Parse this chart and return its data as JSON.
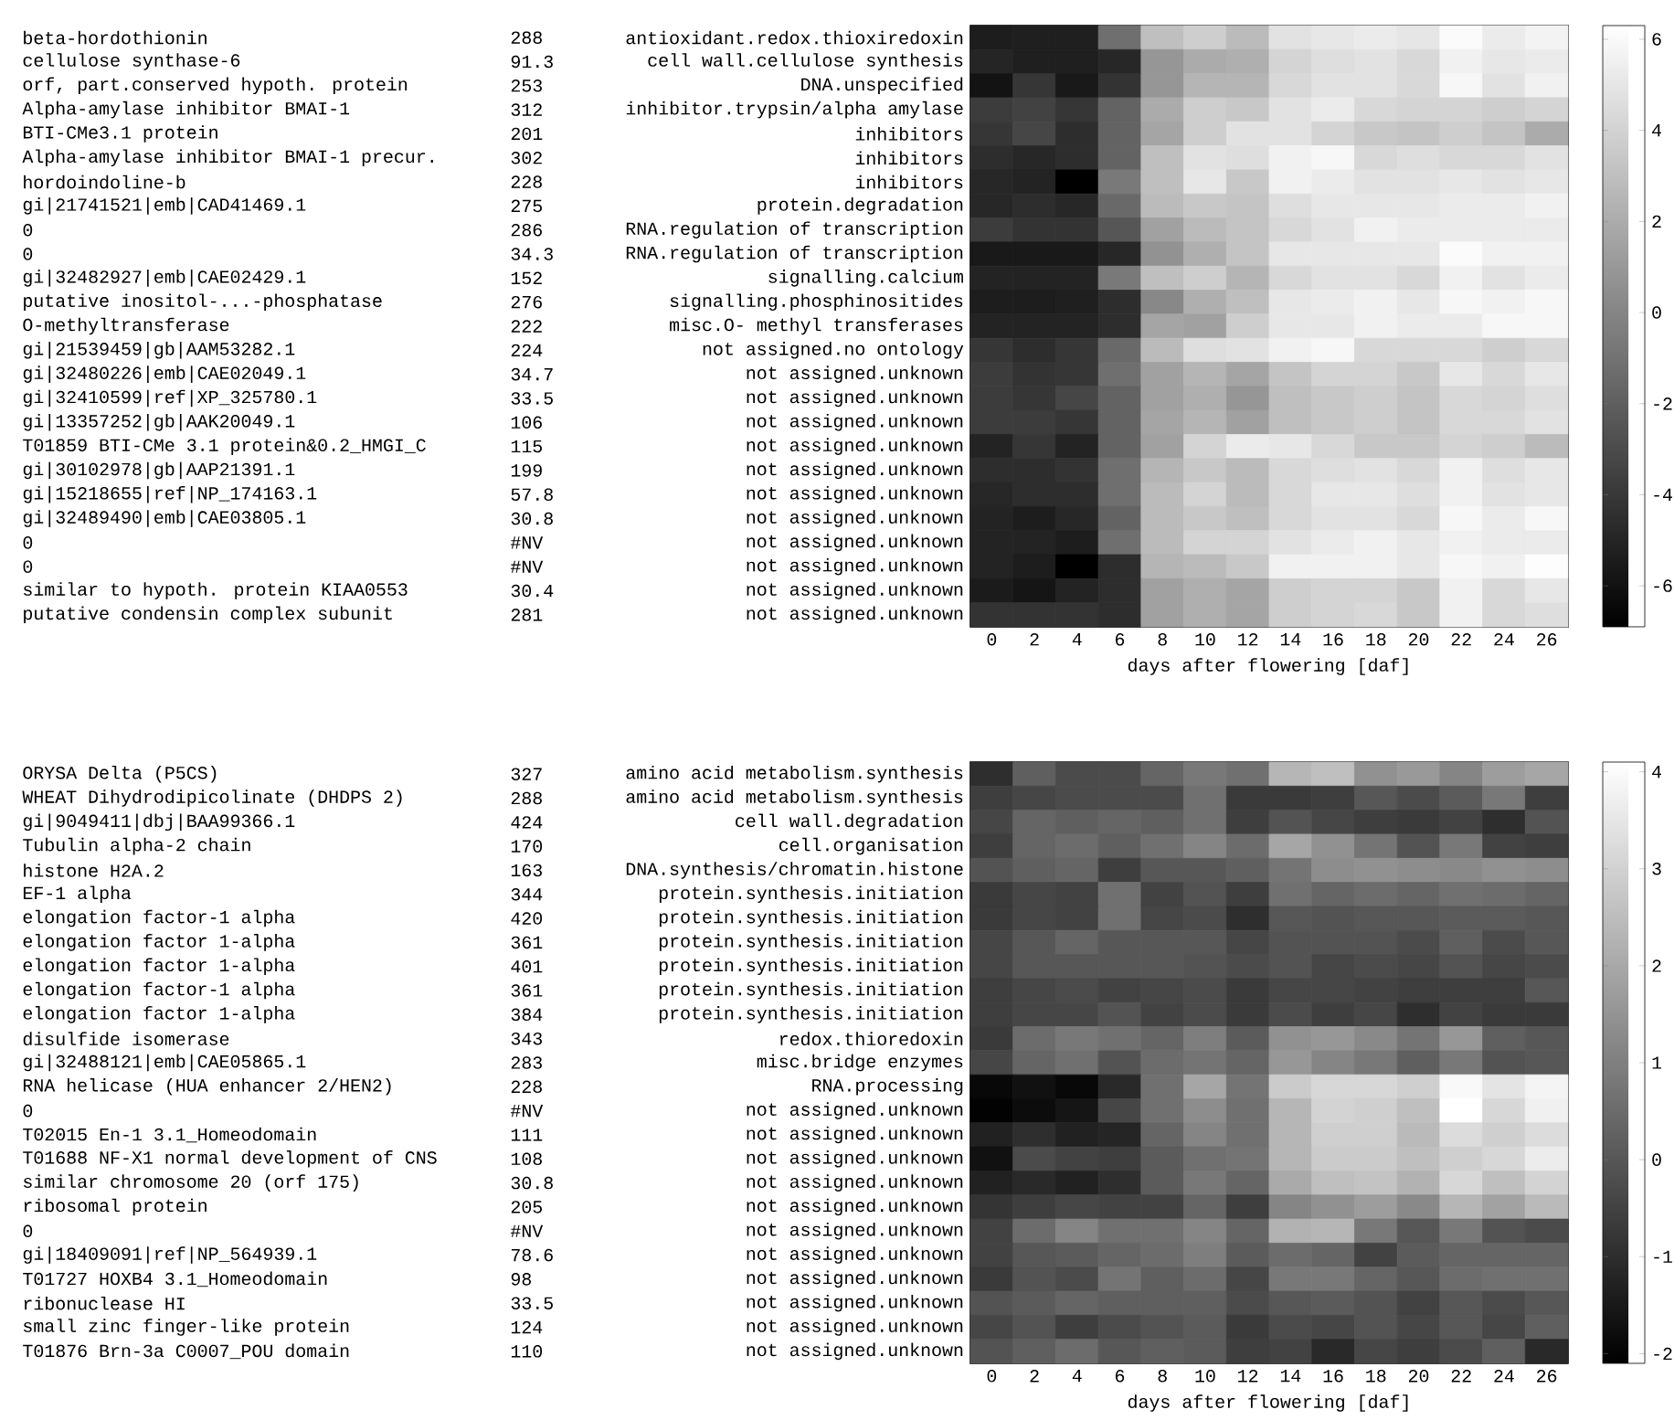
{
  "chart_data": [
    {
      "type": "heatmap",
      "xlabel": "days after flowering [daf]",
      "categories": [
        "0",
        "2",
        "4",
        "6",
        "8",
        "10",
        "12",
        "14",
        "16",
        "18",
        "20",
        "22",
        "24",
        "26"
      ],
      "y_categories": [
        "antioxidant.redox.thioxiredoxin",
        "cell wall.cellulose synthesis",
        "DNA.unspecified",
        "inhibitor.trypsin/alpha amylase",
        "inhibitors",
        "inhibitors",
        "inhibitors",
        "protein.degradation",
        "RNA.regulation of transcription",
        "RNA.regulation of transcription",
        "signalling.calcium",
        "signalling.phosphinositides",
        "misc.O- methyl transferases",
        "not assigned.no ontology",
        "not assigned.unknown",
        "not assigned.unknown",
        "not assigned.unknown",
        "not assigned.unknown",
        "not assigned.unknown",
        "not assigned.unknown",
        "not assigned.unknown",
        "not assigned.unknown",
        "not assigned.unknown",
        "not assigned.unknown",
        "not assigned.unknown"
      ],
      "annotations": [
        "beta-hordothionin",
        "cellulose synthase-6",
        "orf, part.conserved hypoth. protein",
        "Alpha-amylase inhibitor BMAI-1",
        "BTI-CMe3.1 protein",
        "Alpha-amylase inhibitor BMAI-1 precur.",
        "hordoindoline-b",
        "gi|21741521|emb|CAD41469.1",
        "0",
        "0",
        "gi|32482927|emb|CAE02429.1",
        "putative inositol-...-phosphatase",
        "O-methyltransferase",
        "gi|21539459|gb|AAM53282.1",
        "gi|32480226|emb|CAE02049.1",
        "gi|32410599|ref|XP_325780.1",
        "gi|13357252|gb|AAK20049.1",
        "T01859 BTI-CMe 3.1 protein&0.2_HMGI_C",
        "gi|30102978|gb|AAP21391.1",
        "gi|15218655|ref|NP_174163.1",
        "gi|32489490|emb|CAE03805.1",
        "0",
        "0",
        "similar to hypoth. protein KIAA0553",
        "putative condensin complex subunit",
        "288",
        "91.3",
        "253",
        "312",
        "201",
        "302",
        "228",
        "275",
        "286",
        "34.3",
        "152",
        "276",
        "222",
        "224",
        "34.7",
        "33.5",
        "106",
        "115",
        "199",
        "57.8",
        "30.8",
        "#NV",
        "#NV",
        "30.4",
        "281"
      ],
      "clim": [
        -6.9,
        6.3
      ],
      "cticks": [
        -6,
        -4,
        -2,
        0,
        2,
        4,
        6
      ],
      "cells": [
        [
          -5.4,
          -5.3,
          -5.3,
          -1.2,
          2.9,
          3.7,
          2.7,
          4.7,
          5.0,
          5.2,
          4.9,
          6.0,
          5.2,
          5.6
        ],
        [
          -5.0,
          -5.3,
          -5.3,
          -4.9,
          0.8,
          1.9,
          2.1,
          4.0,
          4.5,
          4.7,
          4.2,
          5.5,
          5.0,
          5.2
        ],
        [
          -5.9,
          -4.1,
          -5.6,
          -4.3,
          0.8,
          2.4,
          2.4,
          4.2,
          4.7,
          4.7,
          4.2,
          5.8,
          4.7,
          5.5
        ],
        [
          -3.8,
          -3.5,
          -4.1,
          -1.8,
          1.9,
          3.7,
          3.4,
          4.7,
          5.2,
          4.2,
          4.0,
          4.0,
          3.7,
          4.0
        ],
        [
          -4.1,
          -3.3,
          -4.6,
          -1.8,
          1.6,
          3.7,
          4.7,
          4.7,
          4.0,
          3.4,
          3.2,
          3.7,
          3.2,
          1.9
        ],
        [
          -4.6,
          -4.9,
          -4.6,
          -1.8,
          2.9,
          4.7,
          4.5,
          5.5,
          5.8,
          4.2,
          4.5,
          4.2,
          4.2,
          4.7
        ],
        [
          -4.9,
          -5.1,
          -6.9,
          -0.7,
          2.9,
          5.0,
          3.4,
          5.5,
          5.2,
          4.7,
          4.7,
          5.0,
          4.7,
          5.0
        ],
        [
          -4.9,
          -4.6,
          -4.9,
          -1.5,
          2.7,
          3.4,
          3.2,
          4.5,
          5.0,
          5.0,
          5.0,
          5.2,
          5.2,
          5.5
        ],
        [
          -3.8,
          -4.3,
          -4.3,
          -2.5,
          1.4,
          2.7,
          3.2,
          4.2,
          4.7,
          5.5,
          5.2,
          5.2,
          5.2,
          5.2
        ],
        [
          -5.6,
          -5.6,
          -5.6,
          -4.9,
          0.6,
          2.1,
          3.2,
          5.0,
          5.0,
          5.0,
          5.0,
          6.0,
          5.5,
          5.5
        ],
        [
          -5.1,
          -5.1,
          -5.1,
          -0.7,
          2.9,
          3.7,
          2.4,
          4.2,
          4.7,
          4.7,
          4.2,
          5.5,
          4.7,
          5.2
        ],
        [
          -5.4,
          -5.4,
          -5.3,
          -4.6,
          0.1,
          2.1,
          2.9,
          5.0,
          5.2,
          5.5,
          5.0,
          5.8,
          5.5,
          5.8
        ],
        [
          -5.1,
          -5.1,
          -5.1,
          -4.6,
          1.6,
          1.4,
          3.7,
          5.0,
          5.0,
          5.5,
          5.2,
          5.2,
          5.8,
          5.8
        ],
        [
          -4.1,
          -4.6,
          -4.1,
          -1.5,
          2.7,
          4.5,
          4.7,
          5.5,
          5.8,
          4.2,
          4.2,
          4.2,
          3.7,
          4.2
        ],
        [
          -3.8,
          -4.3,
          -4.1,
          -1.2,
          1.4,
          2.4,
          1.6,
          3.2,
          4.0,
          4.0,
          3.4,
          5.0,
          4.2,
          5.0
        ],
        [
          -3.8,
          -4.1,
          -3.3,
          -1.8,
          1.4,
          2.1,
          0.8,
          2.9,
          3.4,
          3.7,
          3.2,
          4.2,
          4.0,
          4.5
        ],
        [
          -3.8,
          -3.8,
          -4.1,
          -1.8,
          1.6,
          2.4,
          1.4,
          2.9,
          3.4,
          3.7,
          3.2,
          4.2,
          4.2,
          4.7
        ],
        [
          -5.1,
          -4.1,
          -5.1,
          -1.8,
          1.4,
          4.0,
          5.2,
          5.0,
          4.2,
          3.4,
          3.4,
          4.0,
          3.7,
          2.7
        ],
        [
          -4.6,
          -4.6,
          -4.3,
          -1.2,
          2.4,
          3.4,
          2.7,
          4.2,
          4.5,
          4.7,
          4.2,
          5.5,
          4.5,
          5.0
        ],
        [
          -4.9,
          -4.6,
          -4.6,
          -1.2,
          2.7,
          4.0,
          2.7,
          4.2,
          5.0,
          5.0,
          4.5,
          5.5,
          4.7,
          5.0
        ],
        [
          -5.1,
          -5.4,
          -4.9,
          -1.8,
          2.7,
          3.4,
          2.9,
          4.2,
          4.7,
          4.7,
          4.2,
          5.8,
          5.2,
          5.8
        ],
        [
          -5.1,
          -5.1,
          -5.4,
          -1.2,
          2.7,
          4.0,
          4.0,
          4.7,
          5.2,
          5.5,
          5.0,
          5.5,
          5.2,
          5.2
        ],
        [
          -5.1,
          -5.4,
          -6.9,
          -4.6,
          2.4,
          2.7,
          3.4,
          5.5,
          5.5,
          5.5,
          5.0,
          5.8,
          5.5,
          6.1
        ],
        [
          -5.5,
          -5.8,
          -5.1,
          -4.6,
          1.4,
          2.1,
          1.6,
          3.7,
          4.0,
          4.0,
          3.4,
          5.5,
          4.2,
          5.0
        ],
        [
          -4.3,
          -4.3,
          -4.3,
          -4.6,
          1.4,
          2.1,
          1.6,
          3.7,
          4.0,
          4.2,
          3.4,
          5.5,
          4.2,
          4.5
        ]
      ]
    },
    {
      "type": "heatmap",
      "xlabel": "days after flowering [daf]",
      "categories": [
        "0",
        "2",
        "4",
        "6",
        "8",
        "10",
        "12",
        "14",
        "16",
        "18",
        "20",
        "22",
        "24",
        "26"
      ],
      "y_categories": [
        "amino acid metabolism.synthesis",
        "amino acid metabolism.synthesis",
        "cell wall.degradation",
        "cell.organisation",
        "DNA.synthesis/chromatin.histone",
        "protein.synthesis.initiation",
        "protein.synthesis.initiation",
        "protein.synthesis.initiation",
        "protein.synthesis.initiation",
        "protein.synthesis.initiation",
        "protein.synthesis.initiation",
        "redox.thioredoxin",
        "misc.bridge enzymes",
        "RNA.processing",
        "not assigned.unknown",
        "not assigned.unknown",
        "not assigned.unknown",
        "not assigned.unknown",
        "not assigned.unknown",
        "not assigned.unknown",
        "not assigned.unknown",
        "not assigned.unknown",
        "not assigned.unknown",
        "not assigned.unknown",
        "not assigned.unknown"
      ],
      "annotations": [
        "ORYSA Delta (P5CS)",
        "WHEAT Dihydrodipicolinate (DHDPS 2)",
        "gi|9049411|dbj|BAA99366.1",
        "Tubulin alpha-2 chain",
        "histone H2A.2",
        "EF-1 alpha",
        "elongation factor-1 alpha",
        "elongation factor 1-alpha",
        "elongation factor 1-alpha",
        "elongation factor-1 alpha",
        "elongation factor 1-alpha",
        "disulfide isomerase",
        "gi|32488121|emb|CAE05865.1",
        "RNA helicase (HUA enhancer 2/HEN2)",
        "0",
        "T02015 En-1 3.1_Homeodomain",
        "T01688 NF-X1 normal development of CNS",
        "similar chromosome 20 (orf 175)",
        "ribosomal protein",
        "0",
        "gi|18409091|ref|NP_564939.1",
        "T01727 HOXB4 3.1_Homeodomain",
        "ribonuclease HI",
        "small zinc finger-like protein",
        "T01876 Brn-3a C0007_POU domain",
        "327",
        "288",
        "424",
        "170",
        "163",
        "344",
        "420",
        "361",
        "401",
        "361",
        "384",
        "343",
        "283",
        "228",
        "#NV",
        "111",
        "108",
        "30.8",
        "205",
        "#NV",
        "78.6",
        "98",
        "33.5",
        "124",
        "110"
      ],
      "clim": [
        -2.1,
        4.1
      ],
      "cticks": [
        -2,
        -1,
        0,
        1,
        2,
        3,
        4
      ],
      "cells": [
        [
          -1.0,
          0.2,
          -0.3,
          -0.3,
          0.35,
          0.8,
          0.6,
          2.3,
          2.5,
          1.4,
          1.6,
          1.1,
          1.7,
          1.9
        ],
        [
          -0.6,
          -0.4,
          -0.3,
          -0.3,
          -0.3,
          0.6,
          -0.7,
          -0.7,
          -0.6,
          0.0,
          -0.3,
          0.1,
          0.8,
          -0.6
        ],
        [
          -0.4,
          0.35,
          0.2,
          0.35,
          0.2,
          0.6,
          -0.6,
          -0.1,
          -0.4,
          -0.6,
          -0.7,
          -0.5,
          -1.0,
          -0.1
        ],
        [
          -0.6,
          0.35,
          0.5,
          0.2,
          0.6,
          1.1,
          0.5,
          1.9,
          1.4,
          0.7,
          -0.1,
          0.8,
          -0.5,
          -0.6
        ],
        [
          -0.1,
          0.2,
          0.35,
          -0.6,
          0.0,
          0.0,
          0.2,
          0.7,
          1.3,
          1.4,
          1.3,
          1.2,
          1.4,
          1.3
        ],
        [
          -0.7,
          -0.4,
          -0.5,
          0.6,
          -0.5,
          -0.1,
          -0.6,
          0.6,
          0.35,
          0.5,
          0.35,
          0.6,
          0.5,
          0.35
        ],
        [
          -0.7,
          -0.4,
          -0.5,
          0.6,
          -0.4,
          -0.3,
          -1.0,
          0.0,
          -0.1,
          0.0,
          0.0,
          0.1,
          0.1,
          0.0
        ],
        [
          -0.4,
          0.0,
          0.35,
          0.0,
          0.0,
          0.0,
          -0.4,
          -0.1,
          -0.1,
          -0.1,
          -0.3,
          0.2,
          -0.3,
          0.0
        ],
        [
          -0.4,
          0.0,
          0.0,
          0.0,
          0.0,
          -0.1,
          -0.3,
          -0.1,
          -0.4,
          -0.3,
          -0.4,
          -0.1,
          -0.4,
          -0.3
        ],
        [
          -0.6,
          -0.4,
          -0.3,
          -0.5,
          -0.4,
          -0.3,
          -0.7,
          -0.4,
          -0.4,
          -0.5,
          -0.6,
          -0.6,
          -0.6,
          0.0
        ],
        [
          -0.6,
          -0.4,
          -0.4,
          -0.1,
          -0.5,
          -0.3,
          -0.7,
          -0.3,
          -0.6,
          -0.4,
          -1.0,
          -0.5,
          -0.7,
          -0.7
        ],
        [
          -0.7,
          0.5,
          0.8,
          0.6,
          0.35,
          0.95,
          0.1,
          1.4,
          1.55,
          1.2,
          0.7,
          1.55,
          0.2,
          0.0
        ],
        [
          -0.4,
          0.35,
          0.6,
          -0.1,
          0.5,
          0.7,
          0.35,
          1.55,
          1.1,
          0.8,
          0.2,
          0.8,
          -0.1,
          0.0
        ],
        [
          -1.9,
          -1.7,
          -1.9,
          -1.1,
          0.6,
          1.9,
          0.7,
          2.8,
          3.1,
          3.1,
          2.9,
          3.9,
          3.4,
          3.8
        ],
        [
          -2.06,
          -1.8,
          -1.6,
          -0.4,
          0.6,
          1.3,
          0.6,
          2.3,
          3.0,
          2.9,
          2.5,
          4.08,
          3.1,
          3.7
        ],
        [
          -1.3,
          -1.0,
          -1.3,
          -1.2,
          0.35,
          1.1,
          0.6,
          2.3,
          2.9,
          2.9,
          2.4,
          3.2,
          2.9,
          3.2
        ],
        [
          -1.7,
          -0.3,
          -0.5,
          -0.6,
          0.1,
          0.6,
          0.7,
          2.3,
          2.8,
          2.8,
          2.5,
          2.9,
          3.1,
          3.6
        ],
        [
          -1.3,
          -1.1,
          -1.3,
          -1.0,
          0.1,
          0.8,
          0.35,
          2.0,
          2.5,
          2.6,
          2.2,
          3.1,
          2.5,
          3.0
        ],
        [
          -0.85,
          -0.6,
          -0.4,
          -0.5,
          -0.5,
          0.35,
          -0.6,
          1.1,
          1.4,
          1.7,
          1.2,
          2.3,
          1.8,
          2.4
        ],
        [
          -0.5,
          0.5,
          1.1,
          0.6,
          0.6,
          1.1,
          0.35,
          2.2,
          2.3,
          0.8,
          0.0,
          0.8,
          -0.1,
          -0.3
        ],
        [
          -0.5,
          0.0,
          0.1,
          0.35,
          0.5,
          0.95,
          0.1,
          0.5,
          0.35,
          -0.5,
          0.1,
          0.35,
          0.35,
          0.35
        ],
        [
          -0.7,
          -0.1,
          -0.3,
          0.7,
          0.2,
          0.5,
          -0.4,
          0.8,
          0.8,
          0.35,
          0.0,
          0.5,
          0.6,
          0.6
        ],
        [
          -0.1,
          0.1,
          0.35,
          0.2,
          0.2,
          0.2,
          -0.3,
          0.0,
          0.1,
          -0.1,
          -0.5,
          0.0,
          -0.3,
          0.0
        ],
        [
          -0.4,
          -0.1,
          -0.6,
          -0.3,
          -0.1,
          0.1,
          -0.7,
          -0.3,
          -0.4,
          -0.1,
          -0.4,
          0.0,
          -0.4,
          0.2
        ],
        [
          -0.1,
          0.2,
          0.5,
          0.0,
          0.2,
          0.1,
          -0.6,
          -0.5,
          -1.1,
          -0.4,
          -0.6,
          -0.3,
          0.2,
          -1.1
        ]
      ]
    }
  ]
}
